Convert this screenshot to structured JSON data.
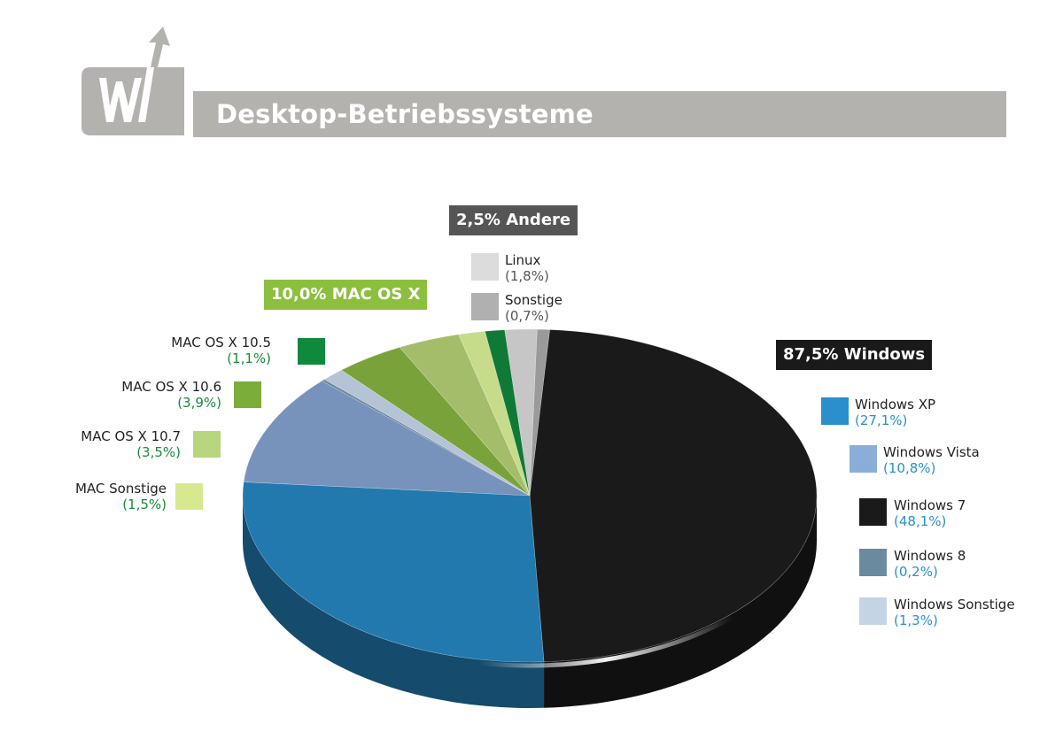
{
  "header": {
    "title": "Desktop-Betriebssysteme"
  },
  "colors": {
    "header_gray": "#b4b2af",
    "windows_tag": "#1a1a1a",
    "mac_tag": "#8dbf3f",
    "andere_tag": "#555555",
    "windows_pct_text": "#2a8fcc",
    "mac_pct_text": "#1a8a3a",
    "andere_pct_text": "#555555"
  },
  "groups": [
    {
      "key": "windows",
      "label": "87,5% Windows"
    },
    {
      "key": "mac",
      "label": "10,0% MAC OS X"
    },
    {
      "key": "andere",
      "label": "2,5% Andere"
    }
  ],
  "legend": {
    "windows": [
      {
        "name": "Windows XP",
        "pct": "(27,1%)",
        "color": "#2a8fcc"
      },
      {
        "name": "Windows Vista",
        "pct": "(10,8%)",
        "color": "#8aaed8"
      },
      {
        "name": "Windows 7",
        "pct": "(48,1%)",
        "color": "#1a1a1a"
      },
      {
        "name": "Windows 8",
        "pct": "(0,2%)",
        "color": "#6a8aa0"
      },
      {
        "name": "Windows Sonstige",
        "pct": "(1,3%)",
        "color": "#c5d4e4"
      }
    ],
    "mac": [
      {
        "name": "MAC OS X 10.5",
        "pct": "(1,1%)",
        "color": "#0f8a3c"
      },
      {
        "name": "MAC OS X 10.6",
        "pct": "(3,9%)",
        "color": "#7aad3a"
      },
      {
        "name": "MAC OS X 10.7",
        "pct": "(3,5%)",
        "color": "#b8d67e"
      },
      {
        "name": "MAC Sonstige",
        "pct": "(1,5%)",
        "color": "#d6e98f"
      }
    ],
    "andere": [
      {
        "name": "Linux",
        "pct": "(1,8%)",
        "color": "#dcdcdc"
      },
      {
        "name": "Sonstige",
        "pct": "(0,7%)",
        "color": "#b0b0b0"
      }
    ]
  },
  "chart_data": {
    "type": "pie",
    "title": "Desktop-Betriebssysteme",
    "unit": "%",
    "slices": [
      {
        "label": "Windows 7",
        "value": 48.1,
        "group": "Windows",
        "color": "#1a1a1a"
      },
      {
        "label": "Windows XP",
        "value": 27.1,
        "group": "Windows",
        "color": "#2279ae"
      },
      {
        "label": "Windows Vista",
        "value": 10.8,
        "group": "Windows",
        "color": "#7793bb"
      },
      {
        "label": "Windows 8",
        "value": 0.2,
        "group": "Windows",
        "color": "#6a8aa0"
      },
      {
        "label": "Windows Sonstige",
        "value": 1.3,
        "group": "Windows",
        "color": "#b4c4d4"
      },
      {
        "label": "MAC OS X 10.6",
        "value": 3.9,
        "group": "MAC OS X",
        "color": "#7aa23a"
      },
      {
        "label": "MAC OS X 10.7",
        "value": 3.5,
        "group": "MAC OS X",
        "color": "#a3bd6a"
      },
      {
        "label": "MAC Sonstige",
        "value": 1.5,
        "group": "MAC OS X",
        "color": "#c7dc8a"
      },
      {
        "label": "MAC OS X 10.5",
        "value": 1.1,
        "group": "MAC OS X",
        "color": "#0f7a36"
      },
      {
        "label": "Linux",
        "value": 1.8,
        "group": "Andere",
        "color": "#c6c6c6"
      },
      {
        "label": "Sonstige",
        "value": 0.7,
        "group": "Andere",
        "color": "#9a9a9a"
      }
    ],
    "group_totals": [
      {
        "group": "Windows",
        "value": 87.5
      },
      {
        "group": "MAC OS X",
        "value": 10.0
      },
      {
        "group": "Andere",
        "value": 2.5
      }
    ],
    "legend_position": "around",
    "style": "3d-pie"
  }
}
